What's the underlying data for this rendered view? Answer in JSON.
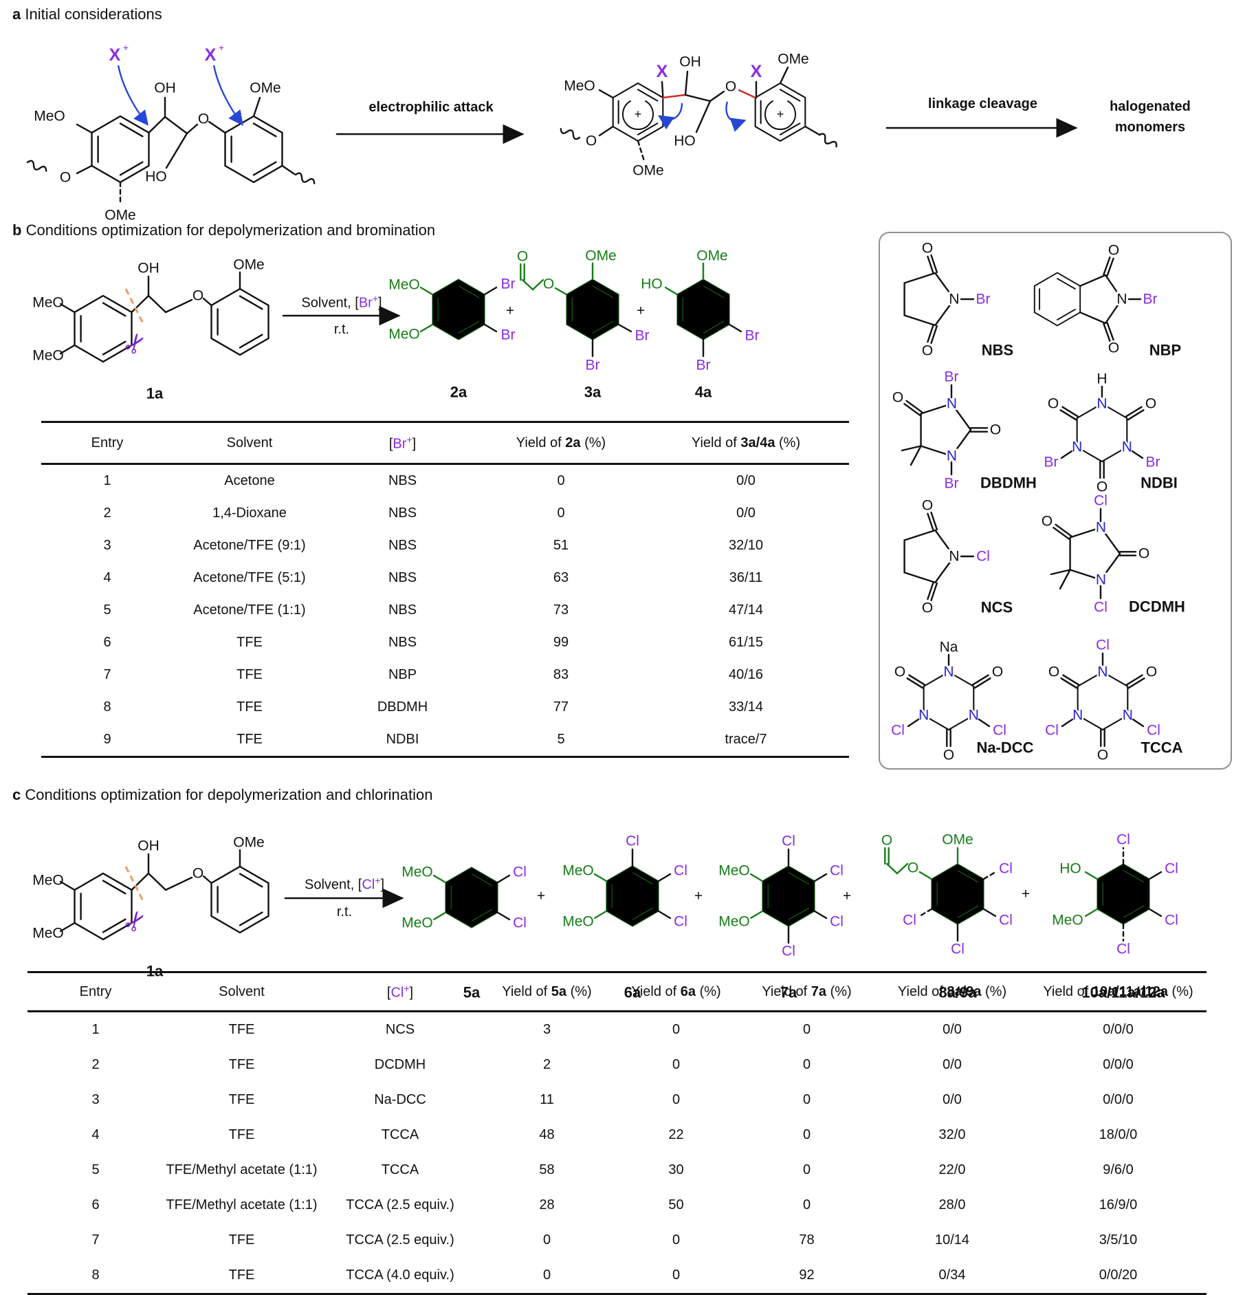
{
  "colors": {
    "green": "#177d17",
    "halogen": "#8a2be2",
    "nitrogen": "#2525cf",
    "blue_arrow": "#2746d6",
    "red_bond": "#d42a2a",
    "orange_cut": "#f09a66",
    "scissors": "#7a1fd0"
  },
  "atoms": {
    "meo": "MeO",
    "ome": "OMe",
    "oh": "OH",
    "ho": "HO",
    "o": "O",
    "br": "Br",
    "cl": "Cl",
    "n": "N",
    "h": "H",
    "na": "Na",
    "x": "X",
    "plus": "+"
  },
  "panel_a": {
    "tag": "a",
    "title": "Initial considerations",
    "arrow1_label": "electrophilic attack",
    "arrow2_label": "linkage cleavage",
    "product_line1": "halogenated",
    "product_line2": "monomers"
  },
  "panel_b": {
    "tag": "b",
    "title": "Conditions optimization for depolymerization and bromination",
    "scheme": {
      "substrate": "1a",
      "plus": "+",
      "temp": "r.t.",
      "conditions": [
        {
          "t": "Solvent, ["
        },
        {
          "t": "Br",
          "c": "halogen"
        },
        {
          "t": "+",
          "c": "halogen",
          "sup": true
        },
        {
          "t": "]"
        }
      ],
      "products": [
        "2a",
        "3a",
        "4a"
      ]
    },
    "table": {
      "headers": [
        [
          {
            "t": "Entry"
          }
        ],
        [
          {
            "t": "Solvent"
          }
        ],
        [
          {
            "t": "["
          },
          {
            "t": "Br",
            "c": "halogen"
          },
          {
            "t": "+",
            "c": "halogen",
            "sup": true
          },
          {
            "t": "]"
          }
        ],
        [
          {
            "t": "Yield of "
          },
          {
            "t": "2a",
            "b": true
          },
          {
            "t": " (%)"
          }
        ],
        [
          {
            "t": "Yield of "
          },
          {
            "t": "3a/4a",
            "b": true
          },
          {
            "t": " (%)"
          }
        ]
      ],
      "rows": [
        [
          "1",
          "Acetone",
          "NBS",
          "0",
          "0/0"
        ],
        [
          "2",
          "1,4-Dioxane",
          "NBS",
          "0",
          "0/0"
        ],
        [
          "3",
          "Acetone/TFE (9:1)",
          "NBS",
          "51",
          "32/10"
        ],
        [
          "4",
          "Acetone/TFE (5:1)",
          "NBS",
          "63",
          "36/11"
        ],
        [
          "5",
          "Acetone/TFE (1:1)",
          "NBS",
          "73",
          "47/14"
        ],
        [
          "6",
          "TFE",
          "NBS",
          "99",
          "61/15"
        ],
        [
          "7",
          "TFE",
          "NBP",
          "83",
          "40/16"
        ],
        [
          "8",
          "TFE",
          "DBDMH",
          "77",
          "33/14"
        ],
        [
          "9",
          "TFE",
          "NDBI",
          "5",
          "trace/7"
        ]
      ]
    }
  },
  "reagent_box": {
    "names": {
      "nbs": "NBS",
      "nbp": "NBP",
      "dbdmh": "DBDMH",
      "ndbi": "NDBI",
      "ncs": "NCS",
      "dcdmh": "DCDMH",
      "nadcc": "Na-DCC",
      "tcca": "TCCA"
    }
  },
  "panel_c": {
    "tag": "c",
    "title": "Conditions optimization for depolymerization and chlorination",
    "scheme": {
      "substrate": "1a",
      "plus": "+",
      "temp": "r.t.",
      "conditions": [
        {
          "t": "Solvent, ["
        },
        {
          "t": "Cl",
          "c": "halogen"
        },
        {
          "t": "+",
          "c": "halogen",
          "sup": true
        },
        {
          "t": "]"
        }
      ],
      "products": [
        "5a",
        "6a",
        "7a",
        "8a/9a",
        "10a/11a/12a"
      ]
    },
    "table": {
      "headers": [
        [
          {
            "t": "Entry"
          }
        ],
        [
          {
            "t": "Solvent"
          }
        ],
        [
          {
            "t": "["
          },
          {
            "t": "Cl",
            "c": "halogen"
          },
          {
            "t": "+",
            "c": "halogen",
            "sup": true
          },
          {
            "t": "]"
          }
        ],
        [
          {
            "t": "Yield of "
          },
          {
            "t": "5a",
            "b": true
          },
          {
            "t": " (%)"
          }
        ],
        [
          {
            "t": "Yield of "
          },
          {
            "t": "6a",
            "b": true
          },
          {
            "t": " (%)"
          }
        ],
        [
          {
            "t": "Yield of "
          },
          {
            "t": "7a",
            "b": true
          },
          {
            "t": " (%)"
          }
        ],
        [
          {
            "t": "Yield of "
          },
          {
            "t": "8a/9a",
            "b": true
          },
          {
            "t": " (%)"
          }
        ],
        [
          {
            "t": "Yield of "
          },
          {
            "t": "10a/11a/12a",
            "b": true
          },
          {
            "t": " (%)"
          }
        ]
      ],
      "rows": [
        [
          "1",
          "TFE",
          "NCS",
          "3",
          "0",
          "0",
          "0/0",
          "0/0/0"
        ],
        [
          "2",
          "TFE",
          "DCDMH",
          "2",
          "0",
          "0",
          "0/0",
          "0/0/0"
        ],
        [
          "3",
          "TFE",
          "Na-DCC",
          "11",
          "0",
          "0",
          "0/0",
          "0/0/0"
        ],
        [
          "4",
          "TFE",
          "TCCA",
          "48",
          "22",
          "0",
          "32/0",
          "18/0/0"
        ],
        [
          "5",
          "TFE/Methyl acetate (1:1)",
          "TCCA",
          "58",
          "30",
          "0",
          "22/0",
          "9/6/0"
        ],
        [
          "6",
          "TFE/Methyl acetate (1:1)",
          "TCCA (2.5 equiv.)",
          "28",
          "50",
          "0",
          "28/0",
          "16/9/0"
        ],
        [
          "7",
          "TFE",
          "TCCA (2.5 equiv.)",
          "0",
          "0",
          "78",
          "10/14",
          "3/5/10"
        ],
        [
          "8",
          "TFE",
          "TCCA (4.0 equiv.)",
          "0",
          "0",
          "92",
          "0/34",
          "0/0/20"
        ]
      ]
    }
  }
}
